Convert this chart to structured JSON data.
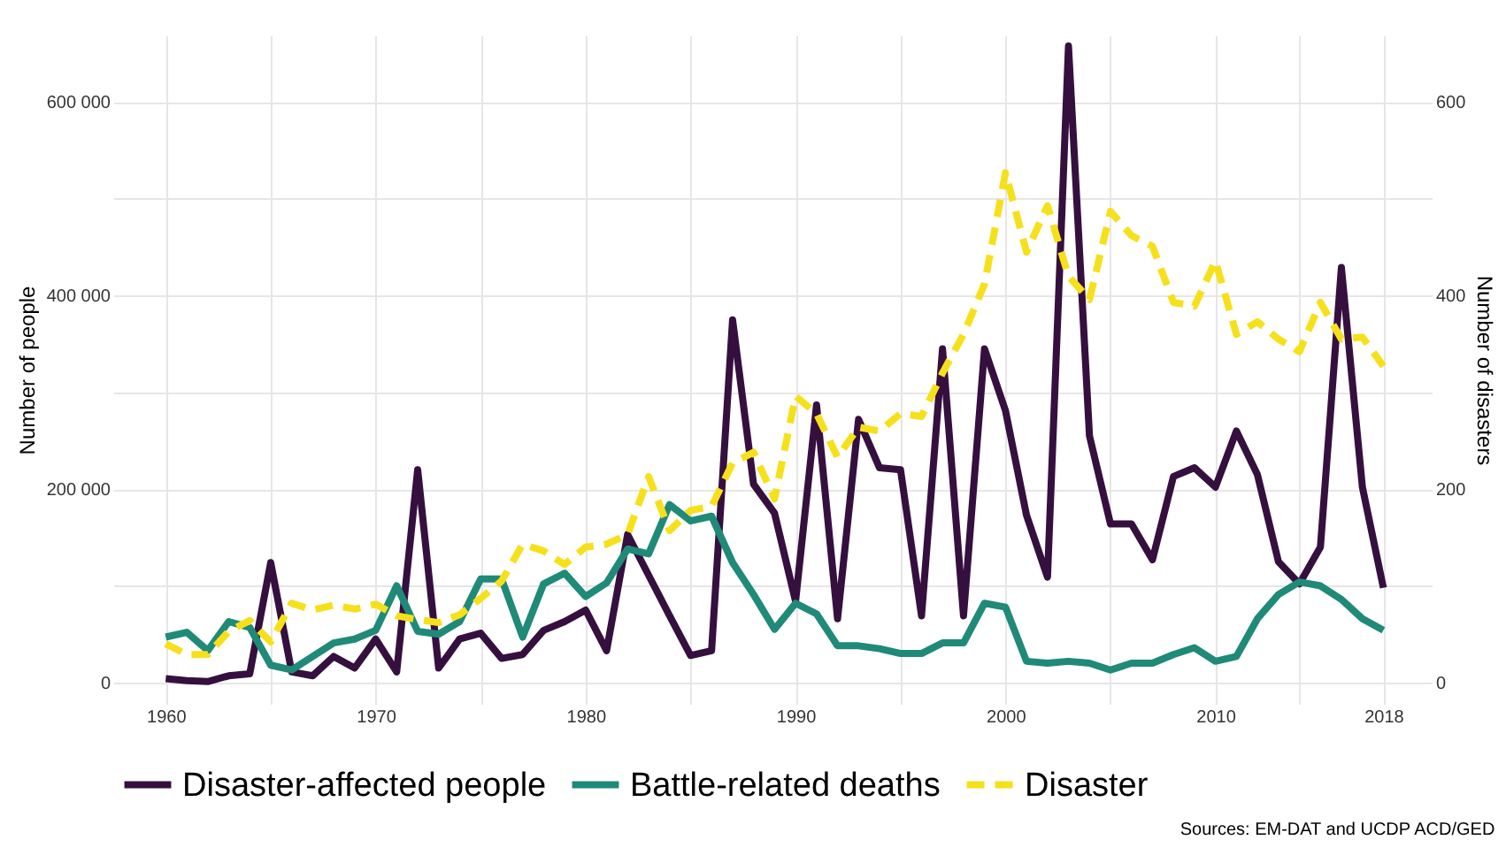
{
  "chart_data": {
    "type": "line",
    "xlabel": null,
    "ylabel": "Number of people",
    "y2label": "Number of disasters",
    "x": [
      1960,
      1961,
      1962,
      1963,
      1964,
      1965,
      1966,
      1967,
      1968,
      1969,
      1970,
      1971,
      1972,
      1973,
      1974,
      1975,
      1976,
      1977,
      1978,
      1979,
      1980,
      1981,
      1982,
      1983,
      1984,
      1985,
      1986,
      1987,
      1988,
      1989,
      1990,
      1991,
      1992,
      1993,
      1994,
      1995,
      1996,
      1997,
      1998,
      1999,
      2000,
      2001,
      2002,
      2003,
      2004,
      2005,
      2006,
      2007,
      2008,
      2009,
      2010,
      2011,
      2012,
      2013,
      2014,
      2015,
      2016,
      2017,
      2018
    ],
    "series": [
      {
        "name": "Disaster-affected people",
        "color": "#35103f",
        "line_style": "solid",
        "values": [
          4000,
          2000,
          1000,
          7000,
          9000,
          124000,
          11000,
          7000,
          27000,
          15000,
          45000,
          11000,
          220000,
          15000,
          45000,
          51000,
          25000,
          29000,
          54000,
          63000,
          75000,
          33000,
          153000,
          111000,
          69000,
          28000,
          33000,
          375000,
          205000,
          175000,
          84000,
          287000,
          66000,
          272000,
          222000,
          220000,
          69000,
          345000,
          69000,
          345000,
          281000,
          173000,
          109000,
          658000,
          255000,
          164000,
          164000,
          127000,
          213000,
          222000,
          202000,
          260000,
          215000,
          125000,
          102000,
          140000,
          429000,
          202000,
          98000
        ]
      },
      {
        "name": "Battle-related deaths",
        "color": "#1f8a78",
        "line_style": "solid",
        "values": [
          47000,
          52000,
          33000,
          63000,
          57000,
          18000,
          13000,
          27000,
          41000,
          45000,
          54000,
          100000,
          53000,
          50000,
          63000,
          107000,
          107000,
          47000,
          102000,
          113000,
          89000,
          103000,
          138000,
          133000,
          184000,
          167000,
          172000,
          124000,
          91000,
          55000,
          82000,
          71000,
          38000,
          38000,
          35000,
          30000,
          30000,
          41000,
          41000,
          82000,
          78000,
          22000,
          20000,
          22000,
          20000,
          13000,
          20000,
          20000,
          29000,
          36000,
          22000,
          27000,
          66000,
          91000,
          104000,
          100000,
          86000,
          66000,
          54000
        ]
      },
      {
        "name": "Disaster",
        "color": "#f6e01c",
        "line_style": "dashed",
        "axis": "y2",
        "values": [
          40,
          29,
          29,
          53,
          64,
          42,
          82,
          75,
          80,
          76,
          81,
          69,
          65,
          62,
          70,
          87,
          105,
          143,
          136,
          122,
          140,
          143,
          153,
          213,
          157,
          178,
          182,
          227,
          238,
          190,
          296,
          278,
          233,
          264,
          260,
          278,
          275,
          320,
          360,
          412,
          527,
          445,
          493,
          420,
          396,
          487,
          462,
          451,
          393,
          389,
          436,
          360,
          373,
          355,
          342,
          393,
          355,
          357,
          327
        ]
      }
    ],
    "xlim": [
      1957.5,
      2020.3
    ],
    "xticks": [
      1960,
      {
        "value": 1965,
        "label": null
      },
      1970,
      {
        "value": 1975,
        "label": null
      },
      1980,
      {
        "value": 1985,
        "label": null
      },
      1990,
      {
        "value": 1995,
        "label": null
      },
      2000,
      {
        "value": 2005,
        "label": null
      },
      2010,
      {
        "value": 2014,
        "label": null
      },
      2018
    ],
    "ylim": [
      -22000,
      669000
    ],
    "yticks": [
      0,
      {
        "value": 100000,
        "label": null
      },
      {
        "value": 200000,
        "label": "200 000"
      },
      {
        "value": 300000,
        "label": null
      },
      {
        "value": 400000,
        "label": "400 000"
      },
      {
        "value": 500000,
        "label": null
      },
      {
        "value": 600000,
        "label": "600 000"
      }
    ],
    "y2lim": [
      -22,
      669
    ],
    "y2ticks": [
      0,
      200,
      400,
      600
    ],
    "grid": true,
    "legend": "bottom",
    "marker": "none",
    "annotations": [
      "Sources: EM-DAT and UCDP ACD/GED"
    ]
  }
}
